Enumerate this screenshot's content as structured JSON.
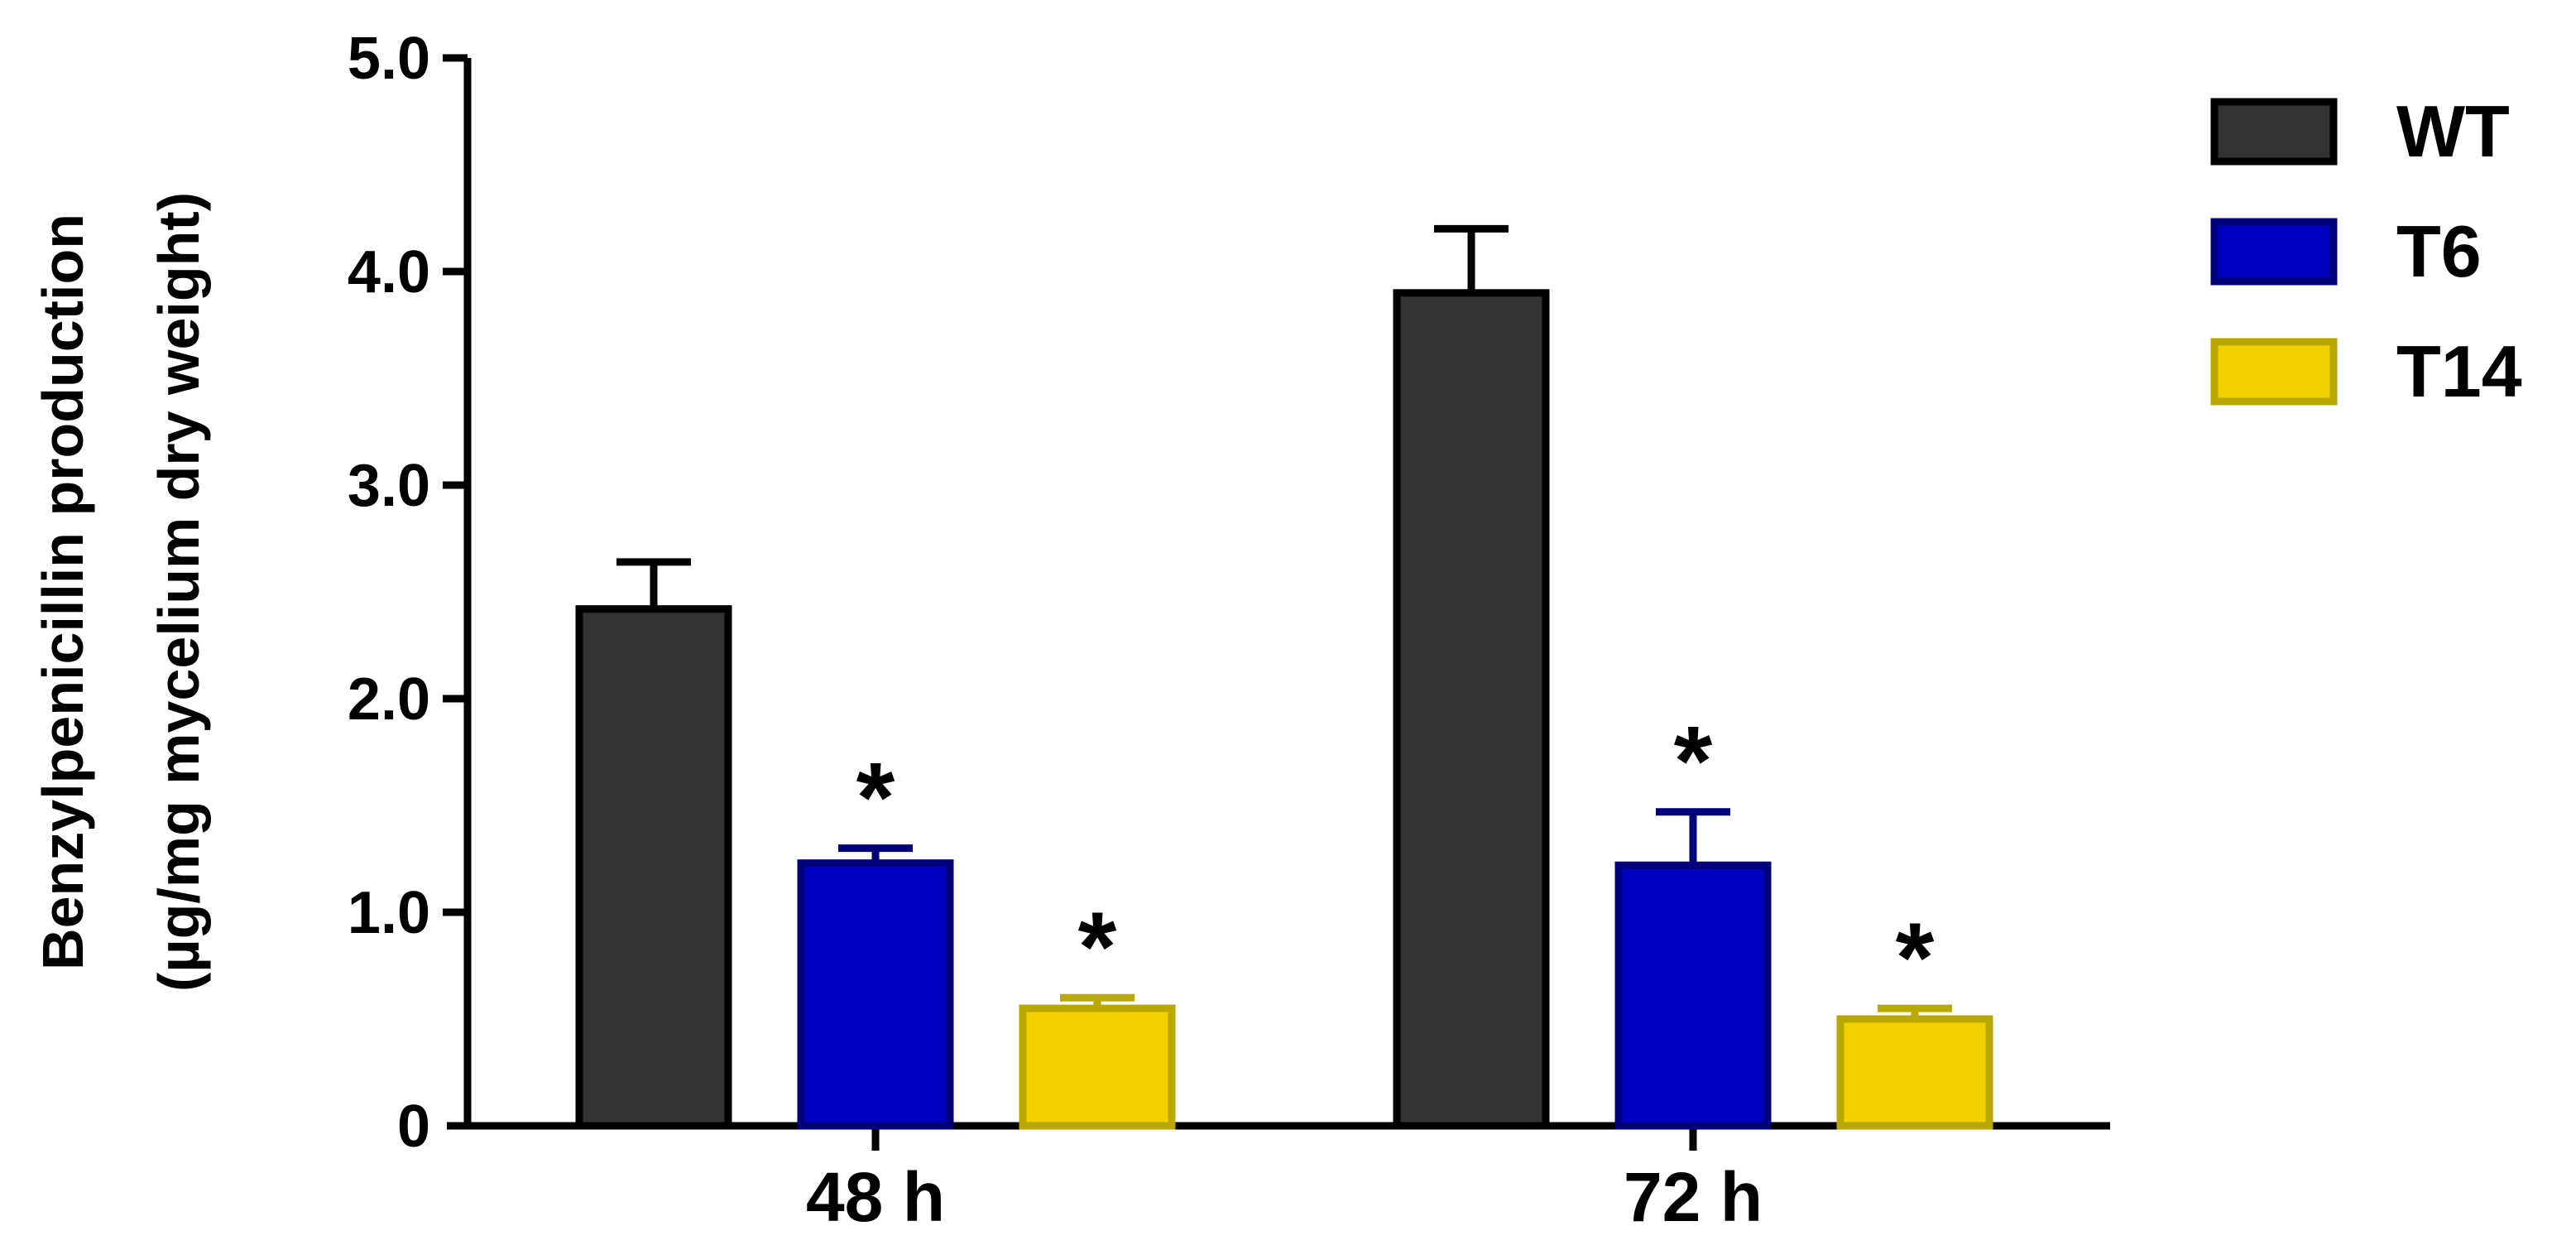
{
  "chart_data": {
    "type": "bar",
    "title": "",
    "ylabel_lines": [
      "Benzylpenicillin production",
      "(µg/mg mycelium dry weight)"
    ],
    "xlabel": "",
    "categories": [
      "48 h",
      "72 h"
    ],
    "ylim": [
      0,
      5.0
    ],
    "yticks": [
      {
        "value": 0,
        "label": "0"
      },
      {
        "value": 1.0,
        "label": "1.0"
      },
      {
        "value": 2.0,
        "label": "2.0"
      },
      {
        "value": 3.0,
        "label": "3.0"
      },
      {
        "value": 4.0,
        "label": "4.0"
      },
      {
        "value": 5.0,
        "label": "5.0"
      }
    ],
    "series": [
      {
        "name": "WT",
        "values": [
          2.42,
          3.9
        ],
        "errors": [
          0.22,
          0.3
        ],
        "fill": "#333333",
        "stroke": "#000000",
        "significance": [
          "",
          ""
        ]
      },
      {
        "name": "T6",
        "values": [
          1.23,
          1.22
        ],
        "errors": [
          0.07,
          0.25
        ],
        "fill": "#0000c0",
        "stroke": "#00007a",
        "significance": [
          "*",
          "*"
        ]
      },
      {
        "name": "T14",
        "values": [
          0.55,
          0.5
        ],
        "errors": [
          0.05,
          0.05
        ],
        "fill": "#f0d000",
        "stroke": "#b8a800",
        "significance": [
          "*",
          "*"
        ]
      }
    ],
    "legend_position": "top-right",
    "grid": false
  }
}
